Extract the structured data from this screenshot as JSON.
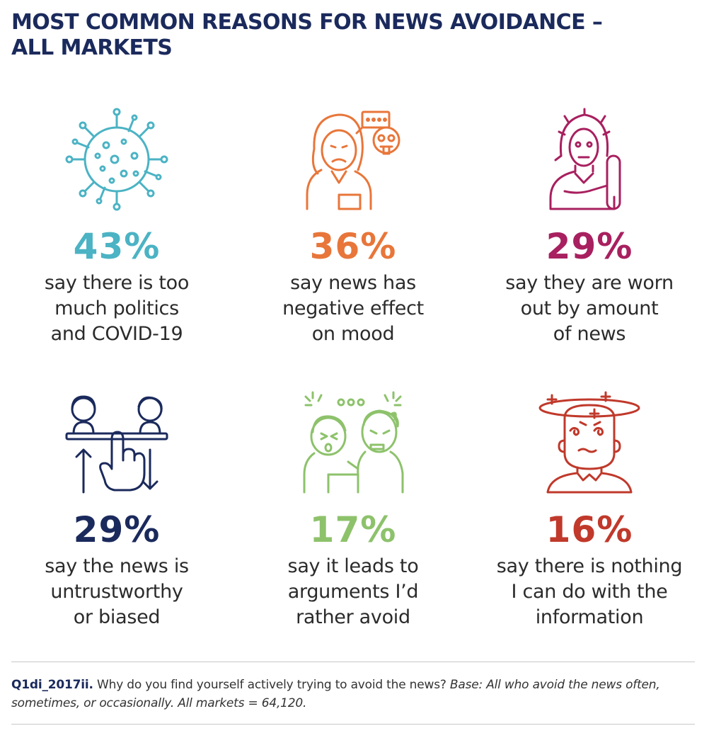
{
  "title": {
    "line1": "MOST COMMON REASONS FOR NEWS AVOIDANCE –",
    "line2": "ALL MARKETS"
  },
  "chart_data": {
    "type": "table",
    "items": [
      {
        "value": "43%",
        "lines": [
          "say there is too",
          "much politics",
          "and COVID-19"
        ],
        "color": "#4bb3c4",
        "icon": "virus-icon"
      },
      {
        "value": "36%",
        "lines": [
          "say news has",
          "negative effect",
          "on mood"
        ],
        "color": "#e8763a",
        "icon": "sad-person-icon"
      },
      {
        "value": "29%",
        "lines": [
          "say they are worn",
          "out by amount",
          "of news"
        ],
        "color": "#a8205f",
        "icon": "stressed-person-icon"
      },
      {
        "value": "29%",
        "lines": [
          "say the news is",
          "untrustworthy",
          "or biased"
        ],
        "color": "#1b2a5c",
        "icon": "voting-hand-icon"
      },
      {
        "value": "17%",
        "lines": [
          "say it leads to",
          "arguments I’d",
          "rather avoid"
        ],
        "color": "#8dc26b",
        "icon": "argument-icon"
      },
      {
        "value": "16%",
        "lines": [
          "say there is nothing",
          "I can do with the",
          "information"
        ],
        "color": "#c0392b",
        "icon": "dizzy-person-icon"
      }
    ]
  },
  "footnote": {
    "code": "Q1di_2017ii.",
    "question": " Why do you find yourself actively trying to avoid the news? ",
    "base": "Base: All who avoid the news often, sometimes, or occasionally. All markets = 64,120."
  }
}
